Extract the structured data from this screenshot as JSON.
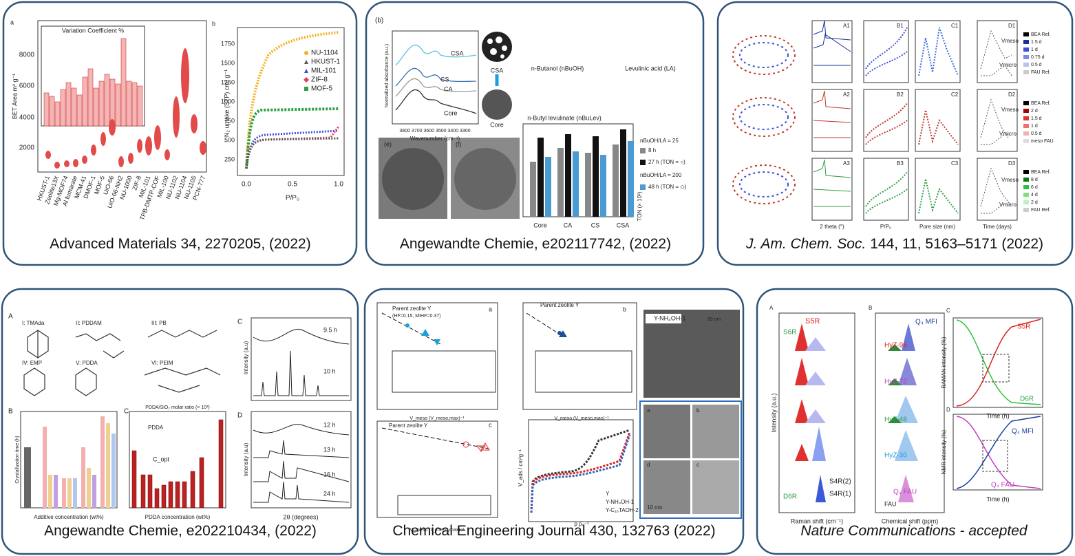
{
  "panels": [
    {
      "caption": "Advanced Materials 34, 2270205, (2022)",
      "texts": [
        "a",
        "Variation Coefficient %",
        "BET Area m² g⁻¹",
        "2000",
        "4000",
        "6000",
        "8000",
        "b",
        "N₂ uptake (STP) cm³ g⁻¹",
        "NU-1104",
        "HKUST-1",
        "MIL-101",
        "ZIF-8",
        "MOF-5",
        "P/P₀",
        "0.0",
        "0.5",
        "1.0",
        "250",
        "500",
        "750",
        "1000",
        "1250",
        "1500",
        "1750"
      ],
      "categories": [
        "HKUST-1",
        "Zeolite13X",
        "Mg-MOF74",
        "Al fumarate",
        "MCM-41",
        "DMOF-1",
        "MOF-5",
        "UiO-66",
        "UiO-66-NH2",
        "NU-1000",
        "ZIF-8",
        "MIL-101",
        "TPB-DMTP-COF",
        "MIL-100",
        "NU-1102",
        "NU-1104",
        "NU-1105",
        "PCN-777"
      ]
    },
    {
      "caption": "Angewandte Chemie, e202117742, (2022)",
      "texts": [
        "(b)",
        "CSA",
        "CS",
        "CA",
        "Core",
        "Normalized absorbance (a.u.)",
        "3800 3700 3600 3500 3400 3300",
        "Wavenumber (cm⁻¹)",
        "CSA",
        "Core",
        "n-Butanol (nBuOH)",
        "Levulinic acid (LA)",
        "n-Butyl levulinate (nBuLev)",
        "Core",
        "CA",
        "CS",
        "CSA",
        "nBuOH/LA = 25",
        "8 h",
        "27 h (TON = ○)",
        "nBuOH/LA = 200",
        "48 h (TON = ◇)",
        "(e)",
        "(f)",
        "TON (× 10³)"
      ]
    },
    {
      "caption_italic": "J. Am. Chem. Soc.",
      "caption": "144, 11, 5163–5171 (2022)",
      "texts": [
        "A1",
        "B1",
        "C1",
        "D1",
        "A2",
        "B2",
        "C2",
        "D2",
        "A3",
        "B3",
        "C3",
        "D3",
        "2 theta (°)",
        "P/P₀",
        "Pore size (nm)",
        "Time (days)",
        "Vmeso",
        "Vmicro",
        "Vmeso",
        "Vmicro",
        "Vmeso",
        "Vmicro",
        "BEA Ref.",
        "1.5 d",
        "1 d",
        "0.75 d",
        "0.5 d",
        "FAU Ref.",
        "BEA Ref.",
        "2 d",
        "1.5 d",
        "1 d",
        "0.5 d",
        "meso FAU",
        "BEA Ref.",
        "8 d",
        "6 d",
        "4 d",
        "2 d",
        "FAU Ref."
      ]
    },
    {
      "caption": "Angewandte Chemie, e202210434, (2022)",
      "texts": [
        "A",
        "I: TMAda",
        "II: PDDAM",
        "III: PB",
        "IV: EMP",
        "V: PDDA",
        "VI: PEIM",
        "B",
        "C",
        "C",
        "D",
        "9.5 h",
        "10 h",
        "12 h",
        "13 h",
        "16 h",
        "24 h",
        "Intensity (a.u)",
        "Intensity (a.u)",
        "2θ (degrees)",
        "Additive concentration (wt%)",
        "PDDA concentration (wt%)",
        "PDDA/SiO₂ molar ratio (× 10³)",
        "Crystallization time (h)",
        "PDDA",
        "C_opt"
      ]
    },
    {
      "caption": "Chemical Engineering Journal 430, 132763 (2022)",
      "texts": [
        "a",
        "b",
        "c",
        "Parent zeolite Y",
        "(HF=0.15, MIHF=0.37)",
        "Parent zeolite Y",
        "Parent zeolite Y",
        "Y-NH₄OH-1",
        "50 nm",
        "10 nm",
        "Y",
        "Y-NH₄OH-1",
        "Y-C₁₆TAOH-2",
        "V_meso (V_meso,max)⁻¹",
        "V_meso (V_meso,max)⁻¹",
        "V_meso (V_meso,max)⁻¹",
        "V_ads / cm³g⁻¹",
        "p p₀⁻¹",
        "a",
        "b",
        "c",
        "d"
      ]
    },
    {
      "caption_italic": "Nature Communications - accepted",
      "texts": [
        "A",
        "B",
        "C",
        "D",
        "S5R",
        "S6R",
        "D6R",
        "S4R(2)",
        "S4R(1)",
        "Q₄ MFI",
        "HyZ-96",
        "HyZ-72",
        "HyZ-48",
        "HyZ-30",
        "Q₄ FAU",
        "FAU",
        "Raman shift (cm⁻¹)",
        "Chemical shift (ppm)",
        "Time (h)",
        "Time (h)",
        "Intensity (a.u.)",
        "S5R",
        "D6R",
        "Q₄ MFI",
        "Q₄ FAU",
        "RAMAN intensity (%)",
        "NMR intensity (%)"
      ]
    }
  ]
}
